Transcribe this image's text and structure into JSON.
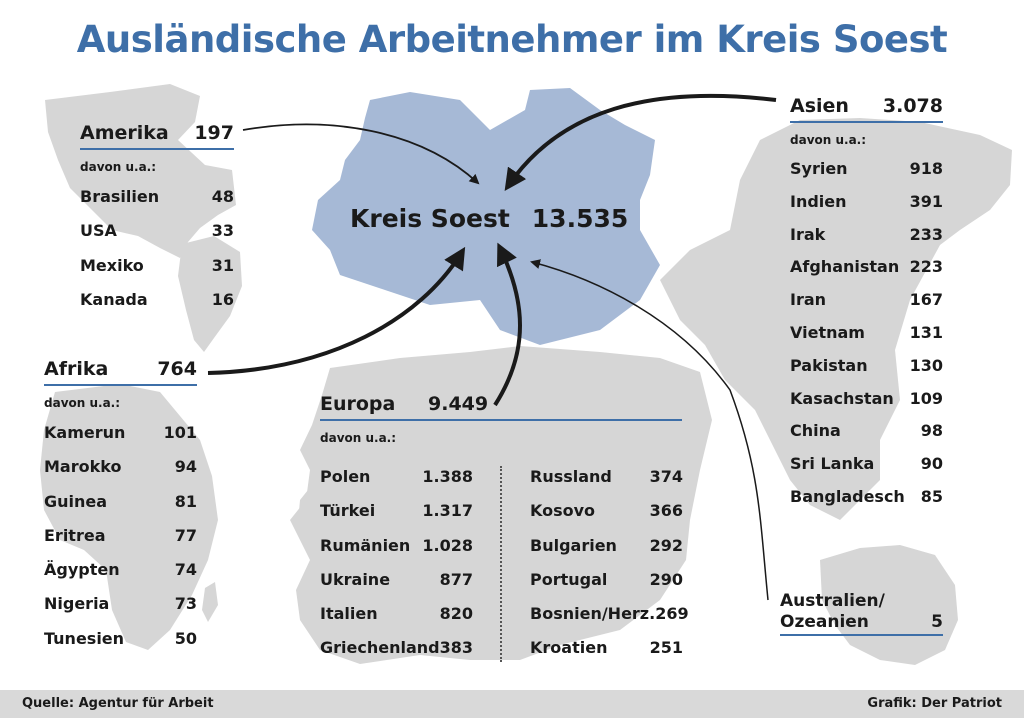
{
  "title": "Ausländische Arbeitnehmer im Kreis Soest",
  "center": {
    "label": "Kreis Soest",
    "total": "13.535"
  },
  "davon_label": "davon u.a.:",
  "regions": {
    "amerika": {
      "name": "Amerika",
      "total": "197",
      "countries": [
        {
          "name": "Brasilien",
          "value": "48"
        },
        {
          "name": "USA",
          "value": "33"
        },
        {
          "name": "Mexiko",
          "value": "31"
        },
        {
          "name": "Kanada",
          "value": "16"
        }
      ]
    },
    "afrika": {
      "name": "Afrika",
      "total": "764",
      "countries": [
        {
          "name": "Kamerun",
          "value": "101"
        },
        {
          "name": "Marokko",
          "value": "94"
        },
        {
          "name": "Guinea",
          "value": "81"
        },
        {
          "name": "Eritrea",
          "value": "77"
        },
        {
          "name": "Ägypten",
          "value": "74"
        },
        {
          "name": "Nigeria",
          "value": "73"
        },
        {
          "name": "Tunesien",
          "value": "50"
        }
      ]
    },
    "europa": {
      "name": "Europa",
      "total": "9.449",
      "countries": [
        {
          "name": "Polen",
          "value": "1.388"
        },
        {
          "name": "Türkei",
          "value": "1.317"
        },
        {
          "name": "Rumänien",
          "value": "1.028"
        },
        {
          "name": "Ukraine",
          "value": "877"
        },
        {
          "name": "Italien",
          "value": "820"
        },
        {
          "name": "Griechenland",
          "value": "383"
        },
        {
          "name": "Russland",
          "value": "374"
        },
        {
          "name": "Kosovo",
          "value": "366"
        },
        {
          "name": "Bulgarien",
          "value": "292"
        },
        {
          "name": "Portugal",
          "value": "290"
        },
        {
          "name": "Bosnien/Herz.",
          "value": "269"
        },
        {
          "name": "Kroatien",
          "value": "251"
        }
      ]
    },
    "asien": {
      "name": "Asien",
      "total": "3.078",
      "countries": [
        {
          "name": "Syrien",
          "value": "918"
        },
        {
          "name": "Indien",
          "value": "391"
        },
        {
          "name": "Irak",
          "value": "233"
        },
        {
          "name": "Afghanistan",
          "value": "223"
        },
        {
          "name": "Iran",
          "value": "167"
        },
        {
          "name": "Vietnam",
          "value": "131"
        },
        {
          "name": "Pakistan",
          "value": "130"
        },
        {
          "name": "Kasachstan",
          "value": "109"
        },
        {
          "name": "China",
          "value": "98"
        },
        {
          "name": "Sri Lanka",
          "value": "90"
        },
        {
          "name": "Bangladesch",
          "value": "85"
        }
      ]
    },
    "ozeanien": {
      "name_line1": "Australien/",
      "name_line2": "Ozeanien",
      "total": "5"
    }
  },
  "footer": {
    "source": "Quelle: Agentur für Arbeit",
    "credit": "Grafik: Der Patriot"
  },
  "colors": {
    "title": "#3e6fa8",
    "kreis_fill": "#a6b9d6",
    "map_fill": "#d6d6d6",
    "rule": "#3e6fa8"
  }
}
